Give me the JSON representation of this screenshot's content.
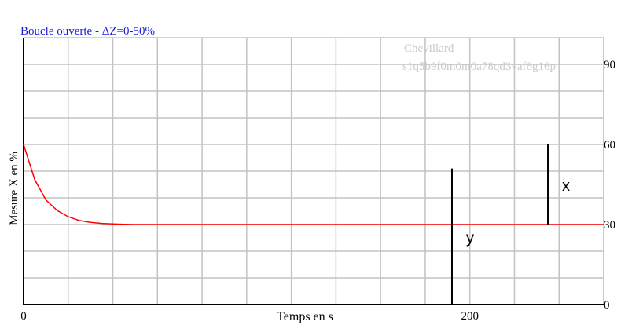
{
  "chart_data": {
    "type": "line",
    "title": "Boucle ouverte - ΔZ=0-50%",
    "watermark_lines": [
      "Chevillard",
      "s1q5b9f0m0m0a78qd3vaf6g16p"
    ],
    "xlabel": "Temps en s",
    "ylabel": "Mesure X en %",
    "xlim": [
      0,
      260
    ],
    "ylim": [
      0,
      100
    ],
    "x_tick_labels": [
      {
        "value": 0,
        "label": "0"
      },
      {
        "value": 200,
        "label": "200"
      }
    ],
    "y_tick_labels": [
      {
        "value": 0,
        "label": "0"
      },
      {
        "value": 30,
        "label": "30"
      },
      {
        "value": 60,
        "label": "60"
      },
      {
        "value": 90,
        "label": "90"
      }
    ],
    "x_grid_step": 20,
    "y_grid_step": 10,
    "grid": true,
    "series": [
      {
        "color": "#ff0000",
        "x": [
          0,
          5,
          10,
          15,
          20,
          25,
          30,
          35,
          40,
          45,
          50,
          60,
          70,
          80,
          90,
          100,
          120,
          140,
          160,
          180,
          200,
          220,
          240,
          260
        ],
        "y": [
          60,
          46.8,
          39.2,
          35.3,
          32.9,
          31.5,
          30.8,
          30.4,
          30.2,
          30.1,
          30.0,
          30,
          30,
          30,
          30,
          30,
          30,
          30,
          30,
          30,
          30,
          30,
          30,
          30
        ]
      }
    ],
    "markers": [
      {
        "x": 192,
        "y_from": 0,
        "y_to": 51,
        "label": "y"
      },
      {
        "x": 235,
        "y_from": 30,
        "y_to": 60,
        "label": "x"
      }
    ]
  }
}
